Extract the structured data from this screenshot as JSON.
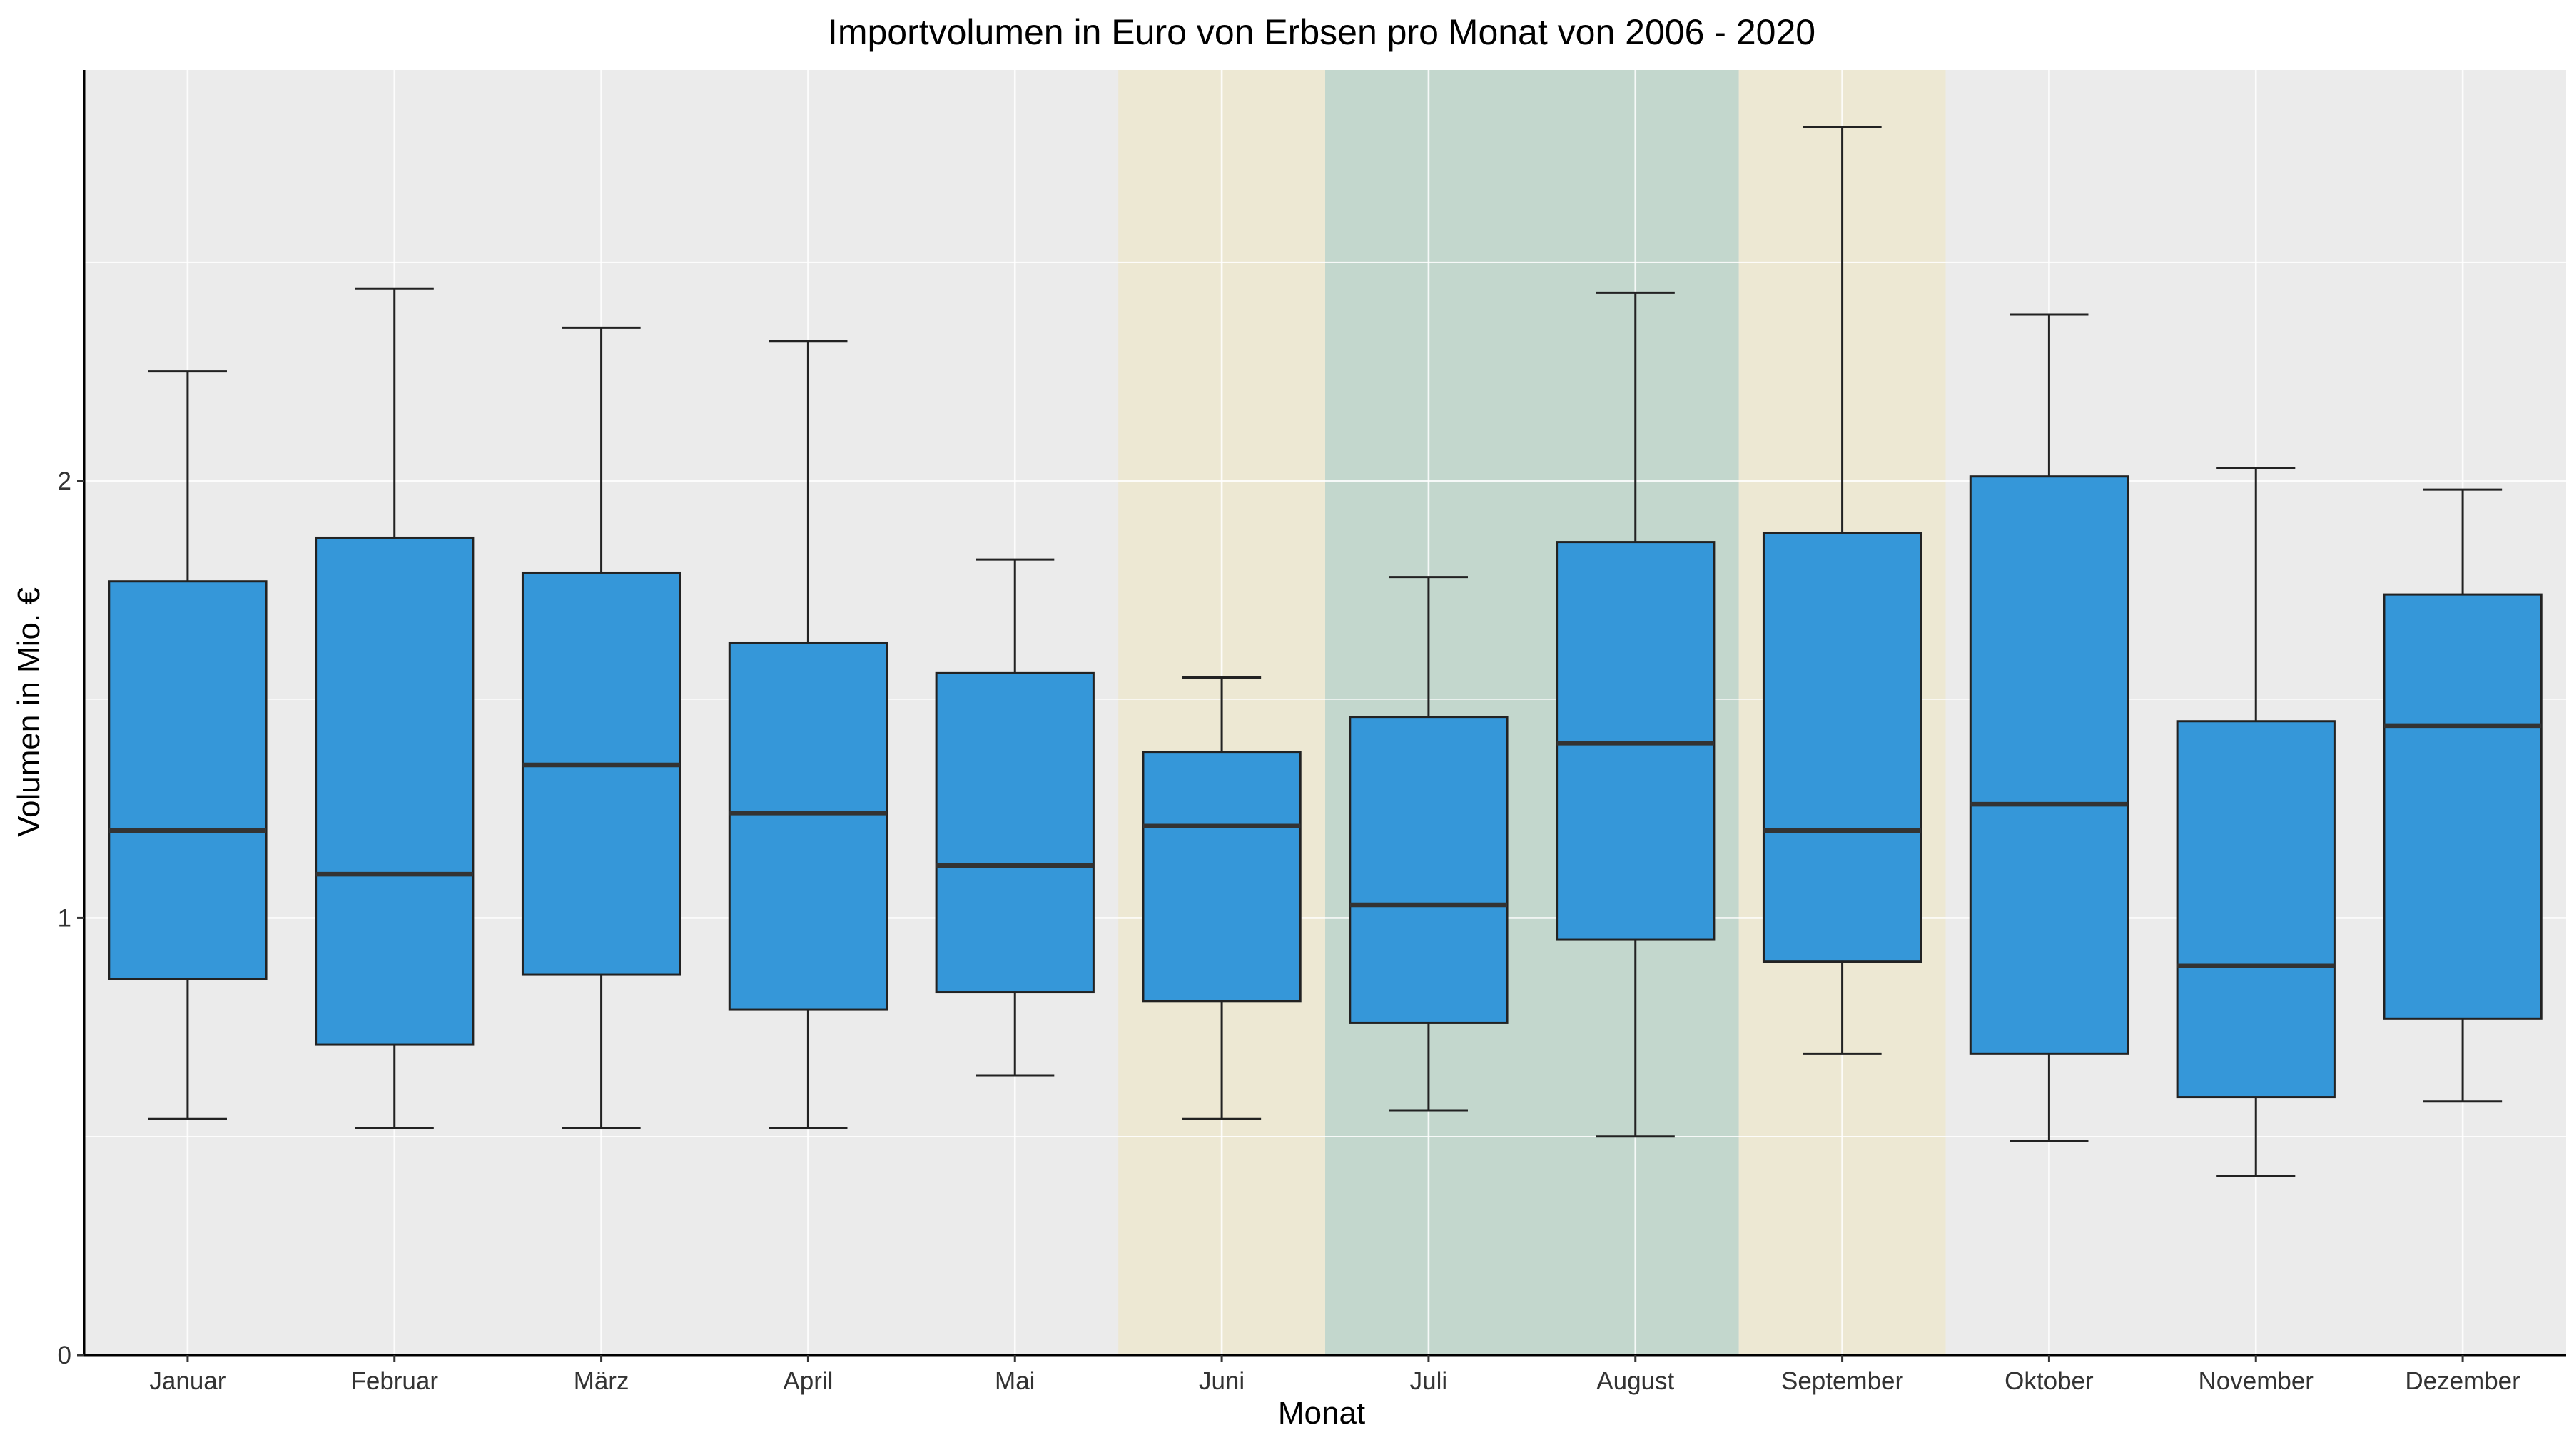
{
  "chart_data": {
    "type": "boxplot",
    "title": "Importvolumen in Euro von Erbsen pro Monat von 2006 - 2020",
    "xlabel": "Monat",
    "ylabel": "Volumen in Mio. €",
    "ylim": [
      0,
      2.94
    ],
    "yticks": [
      0,
      1,
      2
    ],
    "grid": true,
    "categories": [
      "Januar",
      "Februar",
      "März",
      "April",
      "Mai",
      "Juni",
      "Juli",
      "August",
      "September",
      "Oktober",
      "November",
      "Dezember"
    ],
    "boxes": [
      {
        "whisker_low": 0.54,
        "q1": 0.86,
        "median": 1.2,
        "q3": 1.77,
        "whisker_high": 2.25
      },
      {
        "whisker_low": 0.52,
        "q1": 0.71,
        "median": 1.1,
        "q3": 1.87,
        "whisker_high": 2.44
      },
      {
        "whisker_low": 0.52,
        "q1": 0.87,
        "median": 1.35,
        "q3": 1.79,
        "whisker_high": 2.35
      },
      {
        "whisker_low": 0.52,
        "q1": 0.79,
        "median": 1.24,
        "q3": 1.63,
        "whisker_high": 2.32
      },
      {
        "whisker_low": 0.64,
        "q1": 0.83,
        "median": 1.12,
        "q3": 1.56,
        "whisker_high": 1.82
      },
      {
        "whisker_low": 0.54,
        "q1": 0.81,
        "median": 1.21,
        "q3": 1.38,
        "whisker_high": 1.55
      },
      {
        "whisker_low": 0.56,
        "q1": 0.76,
        "median": 1.03,
        "q3": 1.46,
        "whisker_high": 1.78
      },
      {
        "whisker_low": 0.5,
        "q1": 0.95,
        "median": 1.4,
        "q3": 1.86,
        "whisker_high": 2.43
      },
      {
        "whisker_low": 0.69,
        "q1": 0.9,
        "median": 1.2,
        "q3": 1.88,
        "whisker_high": 2.81
      },
      {
        "whisker_low": 0.49,
        "q1": 0.69,
        "median": 1.26,
        "q3": 2.01,
        "whisker_high": 2.38
      },
      {
        "whisker_low": 0.41,
        "q1": 0.59,
        "median": 0.89,
        "q3": 1.45,
        "whisker_high": 2.03
      },
      {
        "whisker_low": 0.58,
        "q1": 0.77,
        "median": 1.44,
        "q3": 1.74,
        "whisker_high": 1.98
      }
    ],
    "highlight_bands": [
      {
        "from": "Juni",
        "to": "Juni",
        "color": "#ede8d3"
      },
      {
        "from": "Juli",
        "to": "August",
        "color": "#c3d7cd"
      },
      {
        "from": "September",
        "to": "September",
        "color": "#ede8d3"
      }
    ],
    "colors": {
      "box_fill": "#3597d9",
      "panel_bg": "#ebebeb",
      "grid": "#ffffff",
      "outline": "#333333"
    }
  }
}
